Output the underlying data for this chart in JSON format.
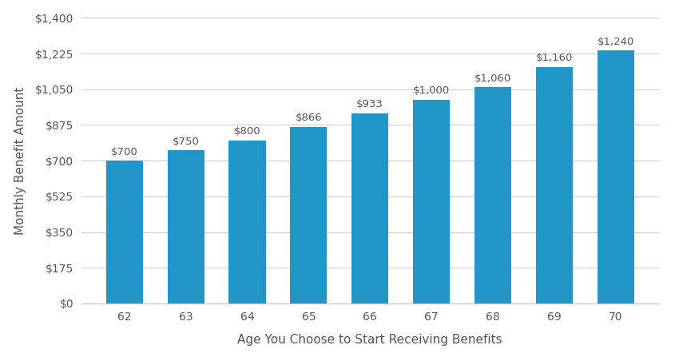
{
  "ages": [
    62,
    63,
    64,
    65,
    66,
    67,
    68,
    69,
    70
  ],
  "values": [
    700,
    750,
    800,
    866,
    933,
    1000,
    1060,
    1160,
    1240
  ],
  "labels": [
    "$700",
    "$750",
    "$800",
    "$866",
    "$933",
    "$1,000",
    "$1,060",
    "$1,160",
    "$1,240"
  ],
  "bar_color": "#2196C8",
  "xlabel": "Age You Choose to Start Receiving Benefits",
  "ylabel": "Monthly Benefit Amount",
  "ylim": [
    0,
    1400
  ],
  "yticks": [
    0,
    175,
    350,
    525,
    700,
    875,
    1050,
    1225,
    1400
  ],
  "ytick_labels": [
    "$0",
    "$175",
    "$350",
    "$525",
    "$700",
    "$875",
    "$1,050",
    "$1,225",
    "$1,400"
  ],
  "background_color": "#ffffff",
  "label_fontsize": 9.5,
  "axis_label_fontsize": 11,
  "tick_fontsize": 10,
  "label_color": "#555555",
  "grid_color": "#cccccc",
  "bar_width": 0.6
}
